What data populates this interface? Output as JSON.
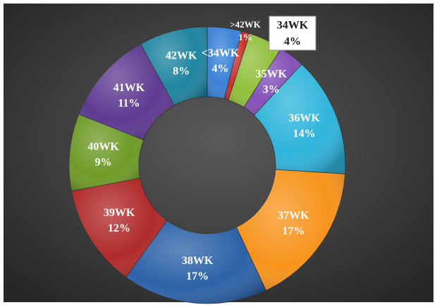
{
  "chart_data": {
    "type": "donut",
    "categories": [
      "<34WK",
      ">42WK",
      "34WK",
      "35WK",
      "36WK",
      "37WK",
      "38WK",
      "39WK",
      "40WK",
      "41WK",
      "42WK"
    ],
    "values": [
      4,
      1,
      4,
      3,
      14,
      17,
      17,
      12,
      9,
      11,
      8
    ],
    "value_labels": [
      "4%",
      "1%",
      "4%",
      "3%",
      "14%",
      "17%",
      "17%",
      "12%",
      "9%",
      "11%",
      "8%"
    ],
    "colors": [
      "#3b82d8",
      "#c9302c",
      "#93bf3c",
      "#8452b8",
      "#2fb4dc",
      "#f7941d",
      "#2c62a8",
      "#b02a2a",
      "#6f9a27",
      "#5e3a91",
      "#1f85a0"
    ]
  }
}
